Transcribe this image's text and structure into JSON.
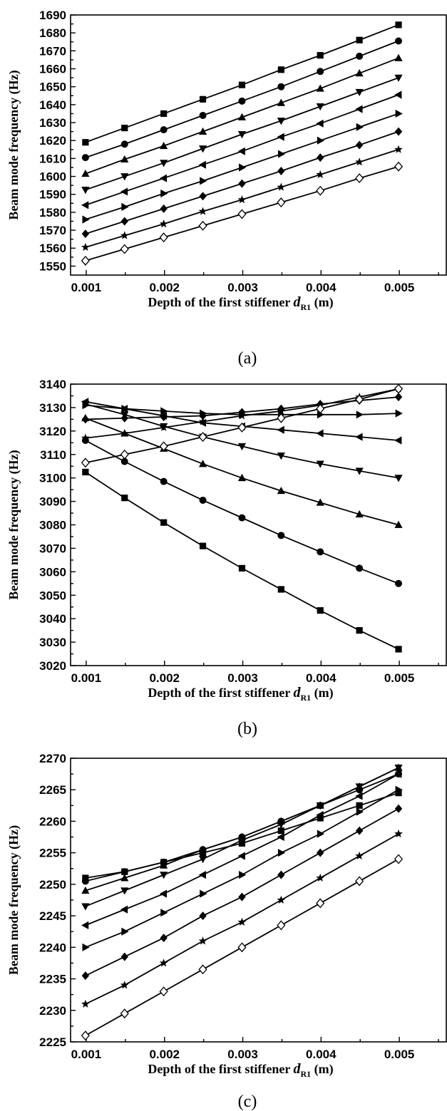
{
  "figure": {
    "captions": [
      "(a)",
      "(b)",
      "(c)"
    ]
  },
  "chart_data": [
    {
      "type": "line",
      "xlabel": "Depth of the first stiffener d_R1 (m)",
      "ylabel": "Beam mode frequency (Hz)",
      "xlim": [
        0.0008,
        0.0056
      ],
      "ylim": [
        1545,
        1690
      ],
      "xticks": [
        "0.001",
        "0.002",
        "0.003",
        "0.004",
        "0.005"
      ],
      "yticks": [
        "1550",
        "1560",
        "1570",
        "1580",
        "1590",
        "1600",
        "1610",
        "1620",
        "1630",
        "1640",
        "1650",
        "1660",
        "1670",
        "1680",
        "1690"
      ],
      "x": [
        0.00099,
        0.00149,
        0.00199,
        0.00249,
        0.00299,
        0.00349,
        0.00399,
        0.00449,
        0.00499
      ],
      "series": [
        {
          "marker": "square",
          "values": [
            1619,
            1627,
            1635,
            1643,
            1651,
            1659.5,
            1667.5,
            1676,
            1684.5
          ]
        },
        {
          "marker": "circle",
          "values": [
            1610.5,
            1618,
            1626,
            1634,
            1642,
            1650,
            1658.5,
            1667,
            1675.5
          ]
        },
        {
          "marker": "triangle-up",
          "values": [
            1601.5,
            1609.5,
            1617,
            1625,
            1633,
            1641,
            1649,
            1657.5,
            1666
          ]
        },
        {
          "marker": "triangle-down",
          "values": [
            1592.5,
            1600,
            1607.5,
            1615.5,
            1623.5,
            1631,
            1639,
            1647,
            1655
          ]
        },
        {
          "marker": "triangle-left",
          "values": [
            1584,
            1591.5,
            1599,
            1606.5,
            1614,
            1622,
            1629.5,
            1637.5,
            1645.5
          ]
        },
        {
          "marker": "triangle-right",
          "values": [
            1576,
            1583,
            1590.5,
            1597.5,
            1605,
            1612.5,
            1620,
            1627.5,
            1635
          ]
        },
        {
          "marker": "diamond",
          "values": [
            1568,
            1575,
            1582,
            1589,
            1596,
            1603,
            1610.5,
            1617.5,
            1625
          ]
        },
        {
          "marker": "star",
          "values": [
            1560.5,
            1567,
            1573.5,
            1580.5,
            1587,
            1594,
            1601,
            1608,
            1615
          ]
        },
        {
          "marker": "diamond-open",
          "values": [
            1553,
            1559.5,
            1566,
            1572.5,
            1579,
            1585.5,
            1592,
            1599,
            1605.5
          ]
        }
      ]
    },
    {
      "type": "line",
      "xlabel": "Depth of the first stiffener d_R1 (m)",
      "ylabel": "Beam mode frequency (Hz)",
      "xlim": [
        0.0008,
        0.0056
      ],
      "ylim": [
        3020,
        3140
      ],
      "xticks": [
        "0.001",
        "0.002",
        "0.003",
        "0.004",
        "0.005"
      ],
      "yticks": [
        "3020",
        "3030",
        "3040",
        "3050",
        "3060",
        "3070",
        "3080",
        "3090",
        "3100",
        "3110",
        "3120",
        "3130",
        "3140"
      ],
      "x": [
        0.00099,
        0.00149,
        0.00199,
        0.00249,
        0.00299,
        0.00349,
        0.00399,
        0.00449,
        0.00499
      ],
      "series": [
        {
          "marker": "square",
          "values": [
            3102.5,
            3091.5,
            3081,
            3071,
            3061.5,
            3052.5,
            3043.5,
            3035,
            3027
          ]
        },
        {
          "marker": "circle",
          "values": [
            3116,
            3107,
            3098.5,
            3090.5,
            3083,
            3075.5,
            3068.5,
            3061.5,
            3055
          ]
        },
        {
          "marker": "triangle-up",
          "values": [
            3125.5,
            3119,
            3112.5,
            3106,
            3100,
            3094.5,
            3089.5,
            3084.5,
            3080
          ]
        },
        {
          "marker": "triangle-down",
          "values": [
            3131.5,
            3127,
            3122,
            3117.5,
            3113.5,
            3109.5,
            3106,
            3103,
            3100
          ]
        },
        {
          "marker": "triangle-left",
          "values": [
            3132.5,
            3129.5,
            3126.5,
            3123.5,
            3122,
            3120.5,
            3119,
            3117.5,
            3116
          ]
        },
        {
          "marker": "triangle-right",
          "values": [
            3131,
            3129.5,
            3128.5,
            3127.5,
            3127,
            3127,
            3127,
            3127,
            3127.5
          ]
        },
        {
          "marker": "diamond",
          "values": [
            3125,
            3125.5,
            3126,
            3126.5,
            3128,
            3129.5,
            3131.5,
            3133,
            3134.5
          ]
        },
        {
          "marker": "star",
          "values": [
            3117,
            3119,
            3121.5,
            3124,
            3126.5,
            3128.5,
            3131,
            3134.5,
            3138
          ]
        },
        {
          "marker": "diamond-open",
          "values": [
            3106.5,
            3110,
            3113.5,
            3117.5,
            3121.5,
            3125.5,
            3129.5,
            3133.5,
            3138
          ]
        }
      ]
    },
    {
      "type": "line",
      "xlabel": "Depth of the first stiffener d_R1 (m)",
      "ylabel": "Beam mode frequency (Hz)",
      "xlim": [
        0.0008,
        0.0056
      ],
      "ylim": [
        2225,
        2270
      ],
      "xticks": [
        "0.001",
        "0.002",
        "0.003",
        "0.004",
        "0.005"
      ],
      "yticks": [
        "2225",
        "2230",
        "2235",
        "2240",
        "2245",
        "2250",
        "2255",
        "2260",
        "2265",
        "2270"
      ],
      "x": [
        0.00099,
        0.00149,
        0.00199,
        0.00249,
        0.00299,
        0.00349,
        0.00399,
        0.00449,
        0.00499
      ],
      "series": [
        {
          "marker": "square",
          "values": [
            2251,
            2252,
            2253.5,
            2255,
            2256.5,
            2258.5,
            2260.5,
            2262.5,
            2264.5
          ]
        },
        {
          "marker": "circle",
          "values": [
            2250.5,
            2252,
            2253.5,
            2255.5,
            2257.5,
            2260,
            2262.5,
            2265,
            2267.5
          ]
        },
        {
          "marker": "triangle-up",
          "values": [
            2249,
            2251,
            2253,
            2255.5,
            2257.5,
            2260,
            2262.5,
            2265.5,
            2268.5
          ]
        },
        {
          "marker": "triangle-down",
          "values": [
            2246.5,
            2249,
            2251.5,
            2254,
            2257,
            2259.5,
            2262.5,
            2265.5,
            2268.5
          ]
        },
        {
          "marker": "triangle-left",
          "values": [
            2243.5,
            2246,
            2248.5,
            2251.5,
            2254.5,
            2257.5,
            2261,
            2264,
            2267.5
          ]
        },
        {
          "marker": "triangle-right",
          "values": [
            2240,
            2242.5,
            2245.5,
            2248.5,
            2251.5,
            2255,
            2258,
            2261.5,
            2265
          ]
        },
        {
          "marker": "diamond",
          "values": [
            2235.5,
            2238.5,
            2241.5,
            2245,
            2248,
            2251.5,
            2255,
            2258.5,
            2262
          ]
        },
        {
          "marker": "star",
          "values": [
            2231,
            2234,
            2237.5,
            2241,
            2244,
            2247.5,
            2251,
            2254.5,
            2258
          ]
        },
        {
          "marker": "diamond-open",
          "values": [
            2226,
            2229.5,
            2233,
            2236.5,
            2240,
            2243.5,
            2247,
            2250.5,
            2254
          ]
        }
      ]
    }
  ]
}
